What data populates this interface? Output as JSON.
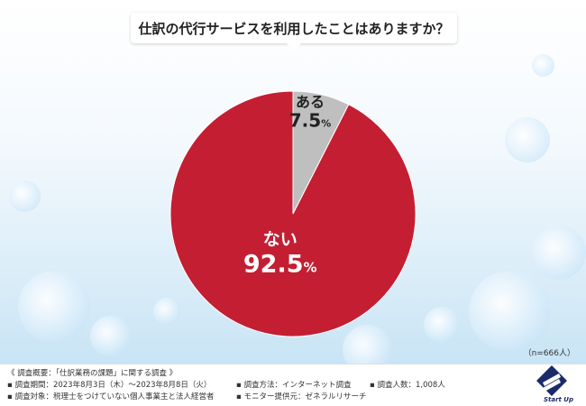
{
  "chart_data": {
    "type": "pie",
    "title": "仕訳の代行サービスを利用したことはありますか？",
    "categories": [
      "ある",
      "ない"
    ],
    "values": [
      7.5,
      92.5
    ],
    "unit": "%",
    "colors": [
      "#bfbfbf",
      "#c41e32"
    ],
    "sample_size": "（n=666人）"
  },
  "footer": {
    "summary_heading": "《 調査概要：「仕訳業務の課題」に関する調査 》",
    "period": "▪ 調査期間：2023年8月3日（木）〜2023年8月8日（火）",
    "method": "▪ 調査方法：インターネット調査",
    "respondents": "▪ 調査人数：1,008人",
    "target": "▪ 調査対象：税理士をつけていない個人事業主と法人経営者",
    "provider": "▪ モニター提供元：ゼネラルリサーチ"
  },
  "logo": {
    "text": "Start Up",
    "icon": "startup-logo-icon",
    "color": "#1b2a6b"
  }
}
